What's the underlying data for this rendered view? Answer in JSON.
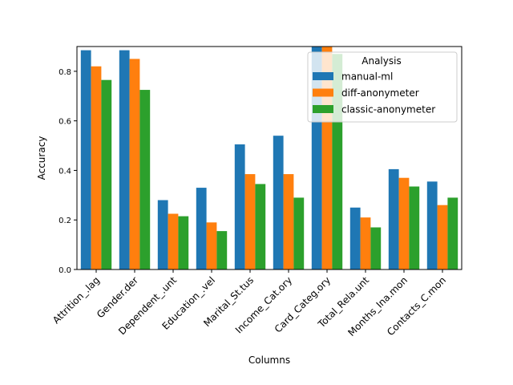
{
  "chart_data": {
    "type": "bar",
    "xlabel": "Columns",
    "ylabel": "Accuracy",
    "ylim": [
      0,
      0.9
    ],
    "yticks": [
      0.0,
      0.2,
      0.4,
      0.6,
      0.8
    ],
    "ytick_labels": [
      "0.0",
      "0.2",
      "0.4",
      "0.6",
      "0.8"
    ],
    "categories": [
      "Attrition_.lag",
      "Gender.der",
      "Dependent_.unt",
      "Education_.vel",
      "Marital_St.tus",
      "Income_Cat.ory",
      "Card_Categ.ory",
      "Total_Rela.unt",
      "Months_Ina.mon",
      "Contacts_C.mon"
    ],
    "legend": {
      "title": "Analysis",
      "position": "top-right"
    },
    "series": [
      {
        "name": "manual-ml",
        "color": "#1f77b4",
        "values": [
          0.885,
          0.885,
          0.28,
          0.33,
          0.505,
          0.54,
          0.94,
          0.25,
          0.405,
          0.355
        ]
      },
      {
        "name": "diff-anonymeter",
        "color": "#ff7f0e",
        "values": [
          0.82,
          0.85,
          0.225,
          0.19,
          0.385,
          0.385,
          0.95,
          0.21,
          0.37,
          0.26
        ]
      },
      {
        "name": "classic-anonymeter",
        "color": "#2ca02c",
        "values": [
          0.765,
          0.725,
          0.215,
          0.155,
          0.345,
          0.29,
          0.87,
          0.17,
          0.335,
          0.29
        ]
      }
    ]
  }
}
